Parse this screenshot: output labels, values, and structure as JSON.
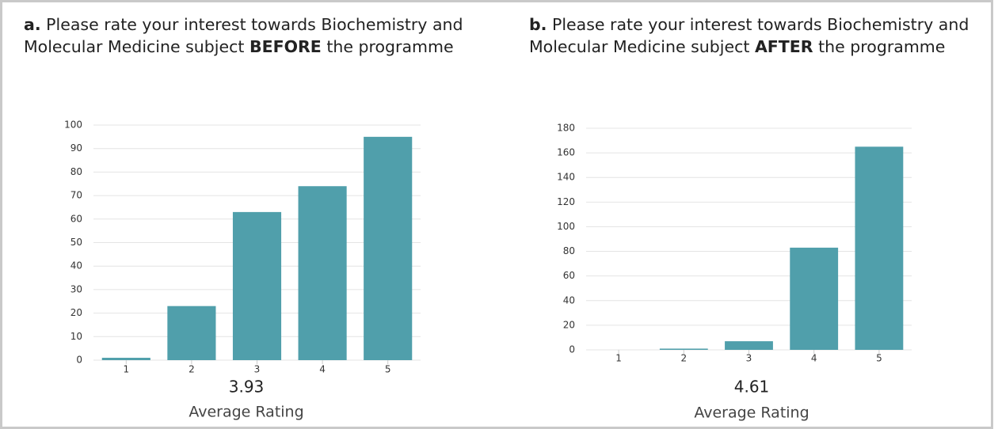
{
  "chart_data": [
    {
      "type": "bar",
      "label": "a.",
      "title": [
        "Please rate your interest towards Biochemistry and Molecular Medicine subject",
        "BEFORE",
        "the programme"
      ],
      "categories": [
        "1",
        "2",
        "3",
        "4",
        "5"
      ],
      "values": [
        1,
        23,
        63,
        74,
        95
      ],
      "color": "#509fab",
      "ylim": [
        0,
        100
      ],
      "yticks": [
        0,
        10,
        20,
        30,
        40,
        50,
        60,
        70,
        80,
        90,
        100
      ],
      "grid": true,
      "average": 3.93,
      "average_label": "Average Rating"
    },
    {
      "type": "bar",
      "label": "b.",
      "title": [
        "Please rate your interest towards Biochemistry and Molecular Medicine subject",
        "AFTER",
        "the programme"
      ],
      "categories": [
        "1",
        "2",
        "3",
        "4",
        "5"
      ],
      "values": [
        0,
        1,
        7,
        83,
        165
      ],
      "color": "#509fab",
      "ylim": [
        0,
        180
      ],
      "yticks": [
        0,
        20,
        40,
        60,
        80,
        100,
        120,
        140,
        160,
        180
      ],
      "grid": true,
      "average": 4.61,
      "average_label": "Average Rating"
    }
  ]
}
